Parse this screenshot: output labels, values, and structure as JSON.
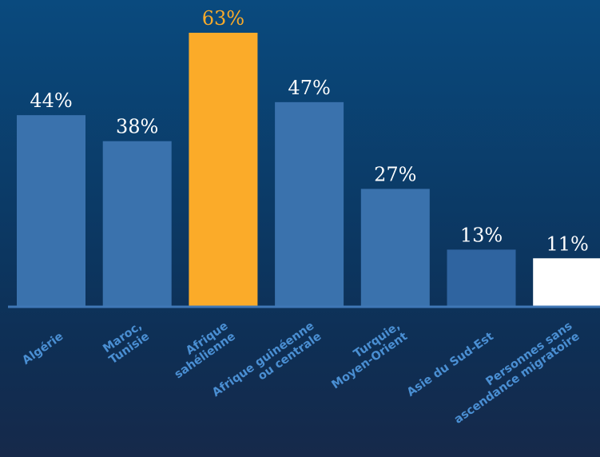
{
  "chart_data": {
    "type": "bar",
    "categories": [
      [
        "Algérie"
      ],
      [
        "Maroc,",
        "Tunisie"
      ],
      [
        "Afrique",
        "sahélienne"
      ],
      [
        "Afrique guinéenne",
        "ou centrale"
      ],
      [
        "Turquie,",
        "Moyen-Orient"
      ],
      [
        "Asie du Sud-Est"
      ],
      [
        "Personnes sans",
        "ascendance migratoire"
      ]
    ],
    "values": [
      44,
      38,
      63,
      47,
      27,
      13,
      11
    ],
    "value_labels": [
      "44%",
      "38%",
      "63%",
      "47%",
      "27%",
      "13%",
      "11%"
    ],
    "unit": "%",
    "title": "",
    "xlabel": "",
    "ylabel": "",
    "ylim": [
      0,
      63
    ],
    "grid": false,
    "legend": "none",
    "highlight_index": 2,
    "reference_index": 6
  },
  "colors": {
    "bar": "#3a72ad",
    "bar_dim": "#2f64a0",
    "highlight": "#fbab29",
    "reference": "#ffffff",
    "value_label": "#ffffff",
    "highlight_label": "#fbab29",
    "category_label": "#4a8fd3",
    "baseline": "#3f77b6"
  }
}
